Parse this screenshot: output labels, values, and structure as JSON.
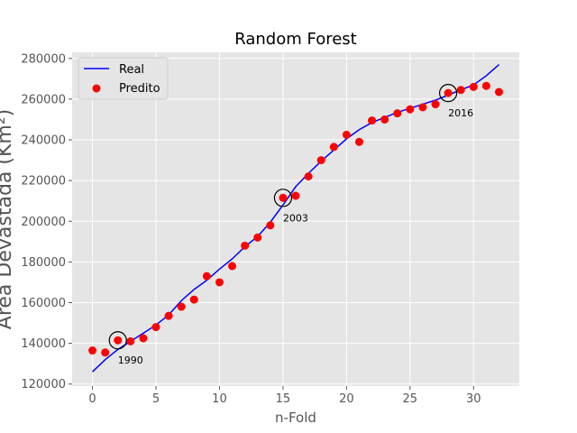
{
  "chart_data": {
    "type": "line",
    "title": "Random Forest",
    "xlabel": "n-Fold",
    "ylabel": "Área Devastada (Km²)",
    "xlim": [
      -1.6,
      33.6
    ],
    "ylim": [
      119000,
      283000
    ],
    "xticks": [
      0,
      5,
      10,
      15,
      20,
      25,
      30
    ],
    "yticks": [
      120000,
      140000,
      160000,
      180000,
      200000,
      220000,
      240000,
      260000,
      280000
    ],
    "ytick_labels": [
      "120000",
      "140000",
      "160000",
      "180000",
      "200000",
      "220000",
      "240000",
      "260000",
      "280000"
    ],
    "grid": true,
    "legend_position": "top-left",
    "series": [
      {
        "name": "Real",
        "kind": "line",
        "color": "#0000ff",
        "x": [
          0,
          1,
          2,
          3,
          4,
          5,
          6,
          7,
          8,
          9,
          10,
          11,
          12,
          13,
          14,
          15,
          16,
          17,
          18,
          19,
          20,
          21,
          22,
          23,
          24,
          25,
          26,
          27,
          28,
          29,
          30,
          31,
          32
        ],
        "y": [
          126000,
          132000,
          137000,
          141000,
          145000,
          149000,
          154000,
          161000,
          166500,
          171000,
          176500,
          181500,
          187500,
          192500,
          199500,
          208000,
          217000,
          223500,
          229500,
          235000,
          240500,
          245000,
          248500,
          251000,
          253500,
          255500,
          257500,
          259500,
          262000,
          264500,
          267000,
          271500,
          277000
        ]
      },
      {
        "name": "Predito",
        "kind": "scatter",
        "color": "#ff0000",
        "x": [
          0,
          1,
          2,
          3,
          4,
          5,
          6,
          7,
          8,
          9,
          10,
          11,
          12,
          13,
          14,
          15,
          16,
          17,
          18,
          19,
          20,
          21,
          22,
          23,
          24,
          25,
          26,
          27,
          28,
          29,
          30,
          31,
          32
        ],
        "y": [
          136500,
          135500,
          141500,
          141000,
          142500,
          148000,
          153500,
          158000,
          161500,
          173000,
          170000,
          178000,
          188000,
          192000,
          198000,
          211500,
          212500,
          222000,
          230000,
          236500,
          242500,
          239000,
          249500,
          250000,
          253000,
          255000,
          256000,
          257500,
          263000,
          264500,
          266000,
          266500,
          263500
        ]
      }
    ],
    "annotations": [
      {
        "x": 2,
        "y": 141500,
        "label": "1990"
      },
      {
        "x": 15,
        "y": 211500,
        "label": "2003"
      },
      {
        "x": 28,
        "y": 263000,
        "label": "2016"
      }
    ]
  }
}
